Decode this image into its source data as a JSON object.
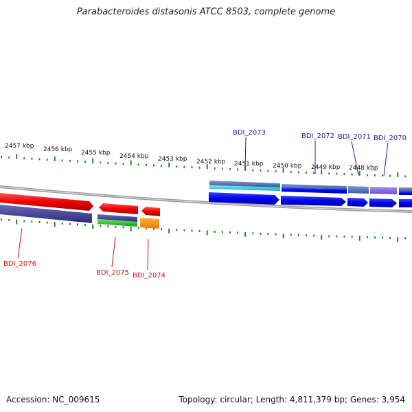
{
  "title": "Parabacteroides distasonis ATCC 8503, complete genome",
  "accession": "Accession: NC_009615",
  "topology": "Topology: circular; Length: 4,811,379 bp; Genes: 3,954",
  "ruler": [
    {
      "label": "2457 kbp"
    },
    {
      "label": "2456 kbp"
    },
    {
      "label": "2455 kbp"
    },
    {
      "label": "2454 kbp"
    },
    {
      "label": "2453 kbp"
    },
    {
      "label": "2452 kbp"
    },
    {
      "label": "2451 kbp"
    },
    {
      "label": "2450 kbp"
    },
    {
      "label": "2449 kbp"
    },
    {
      "label": "2448 kbp"
    }
  ],
  "genes_forward": [
    {
      "label": "BDI_2073",
      "color": "#0000ee"
    },
    {
      "label": "BDI_2072",
      "color": "#0000ee"
    },
    {
      "label": "BDI_2071",
      "color": "#0000ee"
    },
    {
      "label": "BDI_2070",
      "color": "#0000ee"
    }
  ],
  "genes_reverse": [
    {
      "label": "BDI_2076",
      "color": "#ee0000"
    },
    {
      "label": "BDI_2075",
      "color": "#ee0000"
    },
    {
      "label": "BDI_2074",
      "color": "#ee0000"
    }
  ],
  "colors": {
    "forward_gene": "#0000ee",
    "reverse_gene": "#ee0000",
    "orange_feature": "#ff8c00",
    "cog_purple": "#3a3a8c",
    "cog_cyan": "#20c8d8",
    "cog_green": "#22bb22",
    "cog_lavender": "#8870d8",
    "tick_green": "#1f8a1f",
    "backbone": "#9a9a9a"
  }
}
